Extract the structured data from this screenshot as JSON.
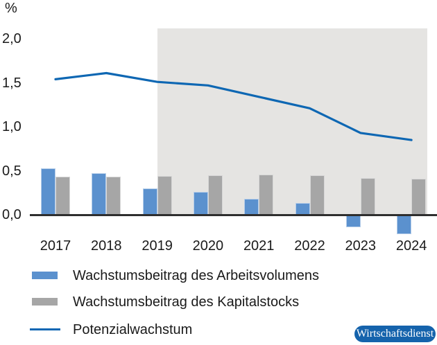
{
  "unit_label": "%",
  "colors": {
    "labor_bar": "#5b91ce",
    "capital_bar": "#a6a6a6",
    "potential_line": "#0e67b3",
    "forecast_shade": "#e5e4e2",
    "axis": "#2e2e2e",
    "text": "#1a1a1a",
    "badge_bg": "#1563ac",
    "badge_text": "#ffffff"
  },
  "chart_data": {
    "type": "bar",
    "title": "",
    "xlabel": "",
    "ylabel": "%",
    "categories": [
      "2017",
      "2018",
      "2019",
      "2020",
      "2021",
      "2022",
      "2023",
      "2024"
    ],
    "series": [
      {
        "name": "Wachstumsbeitrag des Arbeitsvolumens",
        "kind": "bar",
        "values": [
          0.53,
          0.47,
          0.3,
          0.26,
          0.18,
          0.13,
          -0.14,
          -0.22
        ]
      },
      {
        "name": "Wachstumsbeitrag des Kapitalstocks",
        "kind": "bar",
        "values": [
          0.43,
          0.43,
          0.44,
          0.45,
          0.46,
          0.45,
          0.42,
          0.41
        ]
      },
      {
        "name": "Potenzialwachstum",
        "kind": "line",
        "values": [
          1.54,
          1.61,
          1.51,
          1.47,
          1.34,
          1.21,
          0.93,
          0.85
        ]
      }
    ],
    "yticks": [
      {
        "value": 2.0,
        "label": "2,0"
      },
      {
        "value": 1.5,
        "label": "1,5"
      },
      {
        "value": 1.0,
        "label": "1,0"
      },
      {
        "value": 0.5,
        "label": "0,5"
      },
      {
        "value": 0.0,
        "label": "0,0"
      }
    ],
    "ylim": [
      -0.35,
      2.12
    ],
    "grid": false,
    "legend_position": "bottom-left",
    "forecast_shade_from_category": "2019",
    "forecast_shade_to_category": "2024"
  },
  "badge": {
    "label": "Wirtschaftsdienst"
  }
}
